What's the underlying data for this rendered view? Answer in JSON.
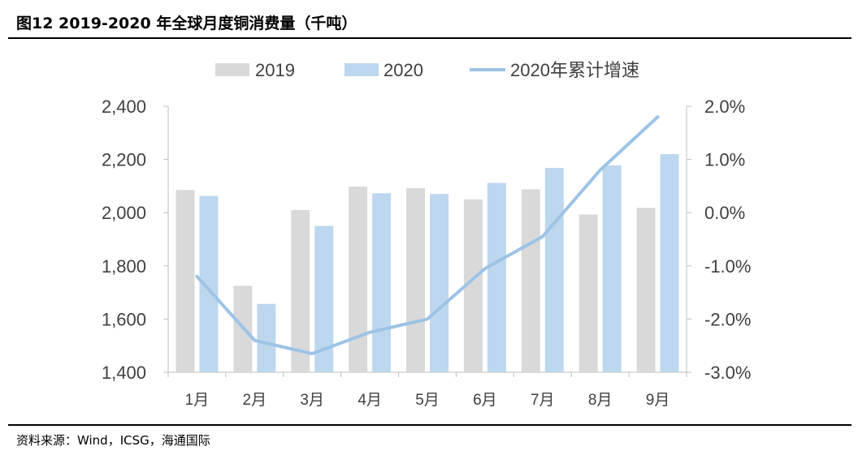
{
  "figure": {
    "title": "图12 2019-2020 年全球月度铜消费量（千吨）",
    "source": "资料来源：Wind，ICSG，海通国际"
  },
  "chart_data": {
    "type": "bar",
    "categories": [
      "1月",
      "2月",
      "3月",
      "4月",
      "5月",
      "6月",
      "7月",
      "8月",
      "9月"
    ],
    "series": [
      {
        "name": "2019",
        "type": "bar",
        "axis": "left",
        "color": "#d9d9d9",
        "values": [
          2085,
          1725,
          2010,
          2098,
          2092,
          2050,
          2088,
          1993,
          2018
        ]
      },
      {
        "name": "2020",
        "type": "bar",
        "axis": "left",
        "color": "#bdd7ee",
        "values": [
          2063,
          1657,
          1950,
          2073,
          2070,
          2112,
          2168,
          2178,
          2220
        ]
      },
      {
        "name": "2020年累计增速",
        "type": "line",
        "axis": "right",
        "color": "#9dc3e6",
        "values": [
          -1.2,
          -2.4,
          -2.65,
          -2.25,
          -2.0,
          -1.05,
          -0.45,
          0.8,
          1.8
        ]
      }
    ],
    "y_left": {
      "min": 1400,
      "max": 2400,
      "ticks": [
        "1,400",
        "1,600",
        "1,800",
        "2,000",
        "2,200",
        "2,400"
      ]
    },
    "y_right": {
      "min": -3.0,
      "max": 2.0,
      "ticks": [
        "-3.0%",
        "-2.0%",
        "-1.0%",
        "0.0%",
        "1.0%",
        "2.0%"
      ]
    },
    "legend_position": "top",
    "grid": false
  }
}
